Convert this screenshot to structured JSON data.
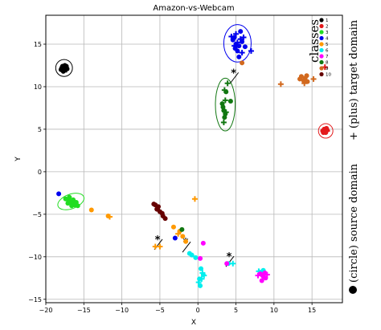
{
  "chart_data": {
    "type": "scatter",
    "title": "Amazon-vs-Webcam",
    "xlabel": "X",
    "ylabel": "Y",
    "xlim": [
      -20,
      19
    ],
    "ylim": [
      -15.4,
      18.4
    ],
    "xticks": [
      -20,
      -15,
      -10,
      -5,
      0,
      5,
      10,
      15
    ],
    "yticks": [
      -15,
      -10,
      -5,
      0,
      5,
      10,
      15
    ],
    "grid": true,
    "legend": {
      "title": "classes",
      "placement": "top-right",
      "labels": [
        "1",
        "2",
        "3",
        "4",
        "5",
        "6",
        "7",
        "8",
        "9",
        "10"
      ],
      "colors": [
        "#000000",
        "#e31a1c",
        "#22dd22",
        "#0000ee",
        "#ff9900",
        "#00eeee",
        "#ff00ff",
        "#117711",
        "#d2691e",
        "#660000"
      ]
    },
    "side_labels": {
      "source": "(circle) source domain",
      "target": "+ (plus) target domain"
    },
    "annotation_text": "*",
    "annotation_points": [
      [
        -5.2,
        -8.6
      ],
      [
        -1.5,
        -8.9
      ],
      [
        4.2,
        -10.6
      ],
      [
        4.8,
        11.0
      ]
    ],
    "ellipses": [
      {
        "class": "1",
        "center": [
          -17.6,
          12.2
        ],
        "rx": 1.1,
        "ry": 1.0,
        "angle": 0
      },
      {
        "class": "4",
        "center": [
          5.2,
          15.1
        ],
        "rx": 1.8,
        "ry": 2.2,
        "angle": 0
      },
      {
        "class": "8",
        "center": [
          3.6,
          7.9
        ],
        "rx": 1.3,
        "ry": 3.1,
        "angle": 0
      },
      {
        "class": "2",
        "center": [
          16.8,
          4.8
        ],
        "rx": 0.95,
        "ry": 0.85,
        "angle": 0
      },
      {
        "class": "3",
        "center": [
          -16.7,
          -3.5
        ],
        "rx": 1.8,
        "ry": 0.85,
        "angle": -20
      }
    ],
    "series": [
      {
        "class": "1",
        "domain": "source",
        "points": [
          [
            -18.0,
            12.0
          ],
          [
            -17.8,
            12.4
          ],
          [
            -17.6,
            11.9
          ],
          [
            -17.4,
            12.3
          ],
          [
            -17.2,
            12.1
          ],
          [
            -17.9,
            12.2
          ],
          [
            -17.5,
            12.5
          ],
          [
            -17.7,
            11.8
          ],
          [
            -17.3,
            12.4
          ],
          [
            -17.6,
            12.2
          ]
        ]
      },
      {
        "class": "1",
        "domain": "target",
        "points": [
          [
            -17.6,
            12.3
          ],
          [
            -17.3,
            12.0
          ]
        ]
      },
      {
        "class": "2",
        "domain": "source",
        "points": [
          [
            16.4,
            4.8
          ],
          [
            16.6,
            5.0
          ],
          [
            16.8,
            4.6
          ],
          [
            17.0,
            4.9
          ],
          [
            16.7,
            4.7
          ],
          [
            16.5,
            4.6
          ],
          [
            16.9,
            5.1
          ]
        ]
      },
      {
        "class": "2",
        "domain": "target",
        "points": [
          [
            17.0,
            4.8
          ],
          [
            16.7,
            12.3
          ]
        ]
      },
      {
        "class": "3",
        "domain": "source",
        "points": [
          [
            -17.4,
            -3.2
          ],
          [
            -17.0,
            -3.4
          ],
          [
            -16.6,
            -3.6
          ],
          [
            -16.2,
            -3.9
          ],
          [
            -15.8,
            -4.0
          ],
          [
            -16.9,
            -3.0
          ],
          [
            -16.4,
            -3.3
          ],
          [
            -17.1,
            -3.7
          ],
          [
            -16.0,
            -3.6
          ],
          [
            -16.6,
            -4.0
          ]
        ]
      },
      {
        "class": "3",
        "domain": "target",
        "points": [
          [
            -16.8,
            -3.5
          ],
          [
            -16.2,
            -3.8
          ]
        ]
      },
      {
        "class": "4",
        "domain": "source",
        "points": [
          [
            4.6,
            15.5
          ],
          [
            5.0,
            15.0
          ],
          [
            5.4,
            14.8
          ],
          [
            5.8,
            15.3
          ],
          [
            5.2,
            14.2
          ],
          [
            5.6,
            16.5
          ],
          [
            4.8,
            15.8
          ],
          [
            5.4,
            13.5
          ],
          [
            -18.3,
            -2.6
          ],
          [
            -3.0,
            -7.8
          ],
          [
            6.2,
            14.7
          ],
          [
            4.9,
            14.5
          ]
        ]
      },
      {
        "class": "4",
        "domain": "target",
        "points": [
          [
            5.0,
            16.2
          ],
          [
            5.6,
            15.6
          ],
          [
            4.8,
            14.8
          ],
          [
            5.2,
            15.2
          ],
          [
            7.0,
            14.2
          ],
          [
            6.0,
            15.8
          ],
          [
            4.4,
            15.9
          ],
          [
            5.8,
            14.0
          ]
        ]
      },
      {
        "class": "5",
        "domain": "source",
        "points": [
          [
            -14.0,
            -4.5
          ],
          [
            -11.8,
            -5.2
          ],
          [
            -2.4,
            -7.0
          ],
          [
            -2.0,
            -7.6
          ],
          [
            -1.6,
            -8.2
          ],
          [
            -3.2,
            -6.5
          ]
        ]
      },
      {
        "class": "5",
        "domain": "target",
        "points": [
          [
            -11.6,
            -5.3
          ],
          [
            -5.6,
            -8.8
          ],
          [
            -5.0,
            -8.8
          ],
          [
            -0.4,
            -3.2
          ],
          [
            -2.6,
            -7.3
          ]
        ]
      },
      {
        "class": "6",
        "domain": "source",
        "points": [
          [
            -0.8,
            -9.8
          ],
          [
            -0.3,
            -10.1
          ],
          [
            0.4,
            -11.4
          ],
          [
            0.7,
            -12.1
          ],
          [
            0.3,
            -13.4
          ],
          [
            0.2,
            -12.6
          ],
          [
            8.2,
            -11.8
          ],
          [
            8.6,
            -11.6
          ],
          [
            4.0,
            -10.8
          ],
          [
            -1.1,
            -9.6
          ]
        ]
      },
      {
        "class": "6",
        "domain": "target",
        "points": [
          [
            0.6,
            -11.9
          ],
          [
            0.1,
            -13.0
          ],
          [
            0.5,
            -12.6
          ],
          [
            4.6,
            -10.8
          ],
          [
            8.0,
            -11.7
          ],
          [
            0.8,
            -12.2
          ]
        ]
      },
      {
        "class": "7",
        "domain": "source",
        "points": [
          [
            8.2,
            -12.0
          ],
          [
            8.6,
            -12.3
          ],
          [
            8.9,
            -12.5
          ],
          [
            8.4,
            -12.8
          ],
          [
            8.8,
            -11.9
          ],
          [
            0.3,
            -10.2
          ],
          [
            0.7,
            -8.4
          ],
          [
            3.8,
            -10.8
          ],
          [
            8.5,
            -12.2
          ]
        ]
      },
      {
        "class": "7",
        "domain": "target",
        "points": [
          [
            7.9,
            -12.2
          ],
          [
            9.1,
            -12.1
          ]
        ]
      },
      {
        "class": "8",
        "domain": "source",
        "points": [
          [
            3.2,
            8.0
          ],
          [
            3.4,
            7.2
          ],
          [
            3.6,
            6.8
          ],
          [
            3.5,
            6.4
          ],
          [
            4.3,
            8.3
          ],
          [
            3.7,
            9.4
          ],
          [
            -2.1,
            -6.8
          ],
          [
            3.3,
            7.6
          ]
        ]
      },
      {
        "class": "8",
        "domain": "target",
        "points": [
          [
            3.5,
            9.6
          ],
          [
            3.9,
            10.4
          ],
          [
            3.6,
            8.4
          ],
          [
            3.4,
            5.8
          ],
          [
            3.7,
            7.0
          ]
        ]
      },
      {
        "class": "9",
        "domain": "source",
        "points": [
          [
            13.6,
            11.2
          ],
          [
            14.1,
            11.0
          ],
          [
            14.4,
            10.6
          ],
          [
            13.9,
            10.7
          ],
          [
            14.3,
            11.3
          ],
          [
            13.4,
            10.9
          ],
          [
            5.8,
            12.8
          ]
        ]
      },
      {
        "class": "9",
        "domain": "target",
        "points": [
          [
            10.9,
            10.3
          ],
          [
            15.2,
            10.9
          ],
          [
            14.0,
            10.4
          ]
        ]
      },
      {
        "class": "10",
        "domain": "source",
        "points": [
          [
            -5.6,
            -3.9
          ],
          [
            -5.2,
            -4.1
          ],
          [
            -5.4,
            -4.4
          ],
          [
            -5.0,
            -4.7
          ],
          [
            -4.6,
            -5.2
          ],
          [
            -4.3,
            -5.5
          ],
          [
            -5.8,
            -3.8
          ],
          [
            -4.7,
            -4.9
          ]
        ]
      },
      {
        "class": "10",
        "domain": "target",
        "points": [
          [
            -5.5,
            -4.0
          ],
          [
            -5.1,
            -4.6
          ]
        ]
      }
    ]
  }
}
